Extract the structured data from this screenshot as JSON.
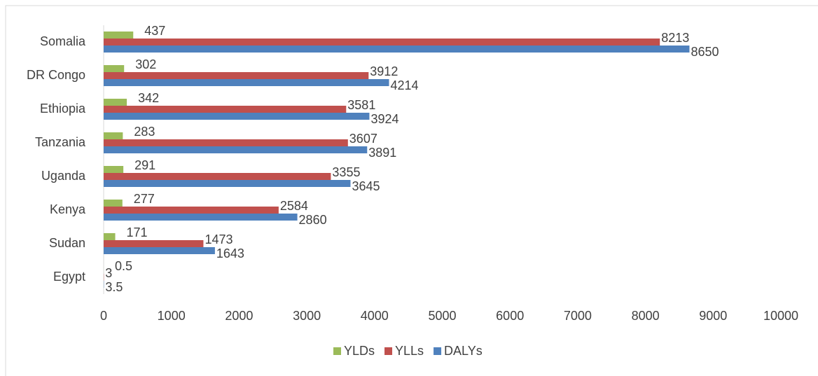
{
  "chart_data": {
    "type": "bar",
    "orientation": "horizontal",
    "categories": [
      "Somalia",
      "DR Congo",
      "Ethiopia",
      "Tanzania",
      "Uganda",
      "Kenya",
      "Sudan",
      "Egypt"
    ],
    "series": [
      {
        "name": "YLDs",
        "color": "#9bbb59",
        "values": [
          437,
          302,
          342,
          283,
          291,
          277,
          171,
          0.5
        ]
      },
      {
        "name": "YLLs",
        "color": "#c0504d",
        "values": [
          8213,
          3912,
          3581,
          3607,
          3355,
          2584,
          1473,
          3
        ]
      },
      {
        "name": "DALYs",
        "color": "#4f81bd",
        "values": [
          8650,
          4214,
          3924,
          3891,
          3645,
          2860,
          1643,
          3.5
        ]
      }
    ],
    "xlim": [
      0,
      10000
    ],
    "xticks": [
      0,
      1000,
      2000,
      3000,
      4000,
      5000,
      6000,
      7000,
      8000,
      9000,
      10000
    ],
    "legend": "bottom",
    "grid": false
  }
}
